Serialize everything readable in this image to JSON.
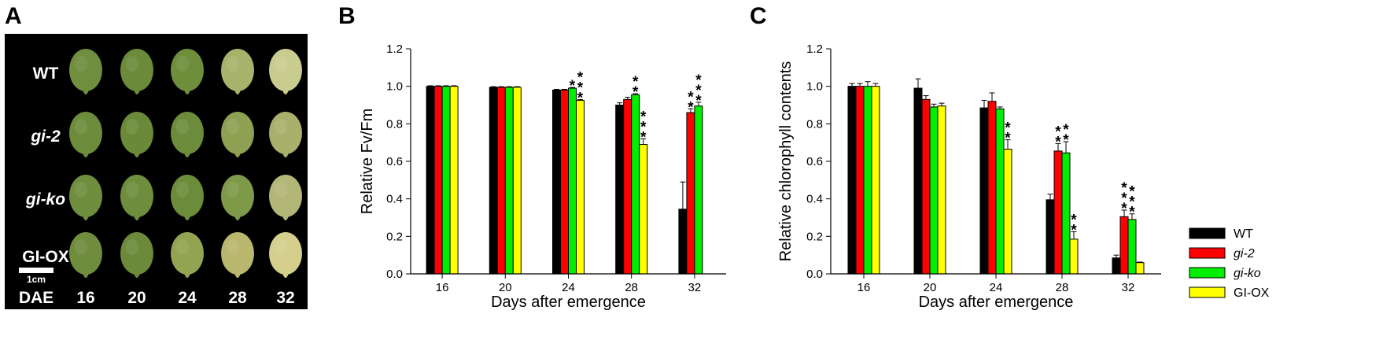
{
  "panels": {
    "a": {
      "letter": "A"
    },
    "b": {
      "letter": "B"
    },
    "c": {
      "letter": "C"
    }
  },
  "photo_panel": {
    "row_labels": [
      {
        "text": "WT",
        "italic": false
      },
      {
        "text": "gi-2",
        "italic": true
      },
      {
        "text": "gi-ko",
        "italic": true
      },
      {
        "text": "GI-OX",
        "italic": false
      }
    ],
    "scale_bar_label": "1cm",
    "dae_label": "DAE",
    "days": [
      "16",
      "20",
      "24",
      "28",
      "32"
    ],
    "leaf_colors": [
      [
        "#6f8e3e",
        "#6b8b3a",
        "#6f8e3c",
        "#a7b26a",
        "#c9cc8f"
      ],
      [
        "#6d8c3b",
        "#6b8a39",
        "#6d8c3b",
        "#8ea152",
        "#a9b06b"
      ],
      [
        "#6f8e3d",
        "#6f8e3d",
        "#6d8c3b",
        "#7e9a48",
        "#b2b778"
      ],
      [
        "#6f8d3c",
        "#6d8a3b",
        "#92a452",
        "#b8b76d",
        "#d4cf8c"
      ]
    ]
  },
  "legend": {
    "entries": [
      {
        "label": "WT",
        "color": "#000000",
        "italic": false
      },
      {
        "label": "gi-2",
        "color": "#ff0000",
        "italic": true
      },
      {
        "label": "gi-ko",
        "color": "#00ee00",
        "italic": true
      },
      {
        "label": "GI-OX",
        "color": "#ffff00",
        "italic": false
      }
    ]
  },
  "chart_data": [
    {
      "type": "bar",
      "panel": "B",
      "title": "",
      "xlabel": "Days after emergence",
      "ylabel": "Relative Fv/Fm",
      "ylim": [
        0,
        1.2
      ],
      "yticks": [
        "0.0",
        "0.2",
        "0.4",
        "0.6",
        "0.8",
        "1.0",
        "1.2"
      ],
      "categories": [
        "16",
        "20",
        "24",
        "28",
        "32"
      ],
      "series": [
        {
          "name": "WT",
          "values": [
            1.0,
            0.995,
            0.98,
            0.9,
            0.345
          ],
          "errors": [
            0.003,
            0.003,
            0.004,
            0.012,
            0.145
          ]
        },
        {
          "name": "gi-2",
          "values": [
            1.0,
            0.995,
            0.98,
            0.93,
            0.86
          ],
          "errors": [
            0.003,
            0.003,
            0.004,
            0.012,
            0.02
          ]
        },
        {
          "name": "gi-ko",
          "values": [
            1.0,
            0.995,
            0.99,
            0.955,
            0.895
          ],
          "errors": [
            0.003,
            0.003,
            0.004,
            0.006,
            0.02
          ]
        },
        {
          "name": "GI-OX",
          "values": [
            1.0,
            0.995,
            0.925,
            0.69,
            0.0
          ],
          "errors": [
            0.003,
            0.003,
            0.004,
            0.03,
            0.0
          ]
        }
      ],
      "annotations": [
        {
          "category": "24",
          "series": "gi-ko",
          "text": "*"
        },
        {
          "category": "24",
          "series": "GI-OX",
          "text": "***"
        },
        {
          "category": "28",
          "series": "gi-ko",
          "text": "**"
        },
        {
          "category": "28",
          "series": "GI-OX",
          "text": "***"
        },
        {
          "category": "32",
          "series": "gi-2",
          "text": "**"
        },
        {
          "category": "32",
          "series": "gi-ko",
          "text": "***"
        }
      ]
    },
    {
      "type": "bar",
      "panel": "C",
      "title": "",
      "xlabel": "Days after emergence",
      "ylabel": "Relative chlorophyll contents",
      "ylim": [
        0,
        1.2
      ],
      "yticks": [
        "0.0",
        "0.2",
        "0.4",
        "0.6",
        "0.8",
        "1.0",
        "1.2"
      ],
      "categories": [
        "16",
        "20",
        "24",
        "28",
        "32"
      ],
      "series": [
        {
          "name": "WT",
          "values": [
            1.0,
            0.99,
            0.885,
            0.395,
            0.085
          ],
          "errors": [
            0.015,
            0.05,
            0.04,
            0.03,
            0.015
          ]
        },
        {
          "name": "gi-2",
          "values": [
            1.0,
            0.93,
            0.92,
            0.655,
            0.305
          ],
          "errors": [
            0.015,
            0.02,
            0.045,
            0.04,
            0.035
          ]
        },
        {
          "name": "gi-ko",
          "values": [
            1.0,
            0.89,
            0.88,
            0.645,
            0.29
          ],
          "errors": [
            0.025,
            0.015,
            0.01,
            0.06,
            0.03
          ]
        },
        {
          "name": "GI-OX",
          "values": [
            1.0,
            0.895,
            0.665,
            0.185,
            0.06
          ],
          "errors": [
            0.015,
            0.015,
            0.05,
            0.04,
            0.003
          ]
        }
      ],
      "annotations": [
        {
          "category": "24",
          "series": "GI-OX",
          "text": "**"
        },
        {
          "category": "28",
          "series": "gi-2",
          "text": "**"
        },
        {
          "category": "28",
          "series": "gi-ko",
          "text": "**"
        },
        {
          "category": "28",
          "series": "GI-OX",
          "text": "**"
        },
        {
          "category": "32",
          "series": "gi-2",
          "text": "***"
        },
        {
          "category": "32",
          "series": "gi-ko",
          "text": "***"
        }
      ]
    }
  ]
}
